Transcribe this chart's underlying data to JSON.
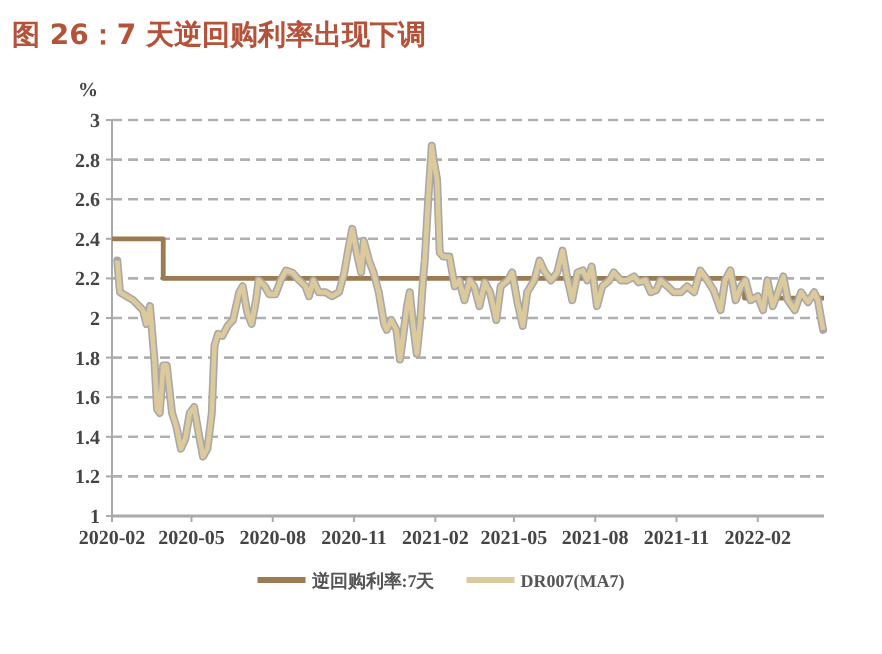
{
  "chart_data": {
    "type": "line",
    "title": "图 26：7 天逆回购利率出现下调",
    "ylabel": "%",
    "xlim": [
      "2020-02-01",
      "2022-04-17"
    ],
    "xticks": [
      {
        "value": "2020-02-01",
        "label": "2020-02"
      },
      {
        "value": "2020-05-01",
        "label": "2020-05"
      },
      {
        "value": "2020-08-01",
        "label": "2020-08"
      },
      {
        "value": "2020-11-01",
        "label": "2020-11"
      },
      {
        "value": "2021-02-01",
        "label": "2021-02"
      },
      {
        "value": "2021-05-01",
        "label": "2021-05"
      },
      {
        "value": "2021-08-01",
        "label": "2021-08"
      },
      {
        "value": "2021-11-01",
        "label": "2021-11"
      },
      {
        "value": "2022-02-01",
        "label": "2022-02"
      }
    ],
    "ylim": [
      1,
      3
    ],
    "yticks": [
      1,
      1.2,
      1.4,
      1.6,
      1.8,
      2,
      2.2,
      2.4,
      2.6,
      2.8,
      3
    ],
    "grid": "y",
    "legend": "bottom",
    "line_style": "solid",
    "marker": "none",
    "series": [
      {
        "name": "逆回购利率:7天",
        "type": "step",
        "color": "#9c7a52",
        "x": [
          "2020-02-01",
          "2020-03-30",
          "2022-01-17",
          "2022-04-17"
        ],
        "values": [
          2.4,
          2.2,
          2.1,
          2.1
        ]
      },
      {
        "name": "DR007(MA7)",
        "type": "line",
        "color": "#dcc99c",
        "x": [
          "2020-02-07",
          "2020-02-10",
          "2020-02-25",
          "2020-03-07",
          "2020-03-11",
          "2020-03-15",
          "2020-03-20",
          "2020-03-23",
          "2020-03-26",
          "2020-03-30",
          "2020-04-03",
          "2020-04-09",
          "2020-04-14",
          "2020-04-19",
          "2020-04-24",
          "2020-04-29",
          "2020-05-04",
          "2020-05-09",
          "2020-05-14",
          "2020-05-19",
          "2020-05-24",
          "2020-05-27",
          "2020-05-31",
          "2020-06-05",
          "2020-06-11",
          "2020-06-17",
          "2020-06-24",
          "2020-06-28",
          "2020-07-03",
          "2020-07-08",
          "2020-07-13",
          "2020-07-16",
          "2020-07-23",
          "2020-07-28",
          "2020-08-04",
          "2020-08-10",
          "2020-08-16",
          "2020-08-23",
          "2020-08-31",
          "2020-09-07",
          "2020-09-11",
          "2020-09-16",
          "2020-09-22",
          "2020-09-30",
          "2020-10-07",
          "2020-10-15",
          "2020-10-21",
          "2020-10-26",
          "2020-10-30",
          "2020-11-04",
          "2020-11-09",
          "2020-11-12",
          "2020-11-18",
          "2020-11-23",
          "2020-11-29",
          "2020-12-05",
          "2020-12-08",
          "2020-12-13",
          "2020-12-19",
          "2020-12-23",
          "2020-12-26",
          "2020-12-31",
          "2021-01-03",
          "2021-01-07",
          "2021-01-11",
          "2021-01-15",
          "2021-01-18",
          "2021-01-20",
          "2021-01-24",
          "2021-01-28",
          "2021-01-30",
          "2021-02-03",
          "2021-02-06",
          "2021-02-10",
          "2021-02-17",
          "2021-02-23",
          "2021-02-28",
          "2021-03-06",
          "2021-03-12",
          "2021-03-17",
          "2021-03-23",
          "2021-03-29",
          "2021-04-04",
          "2021-04-11",
          "2021-04-16",
          "2021-04-24",
          "2021-04-29",
          "2021-05-05",
          "2021-05-11",
          "2021-05-16",
          "2021-05-24",
          "2021-05-30",
          "2021-06-04",
          "2021-06-12",
          "2021-06-19",
          "2021-06-25",
          "2021-06-30",
          "2021-07-06",
          "2021-07-12",
          "2021-07-18",
          "2021-07-23",
          "2021-07-28",
          "2021-08-03",
          "2021-08-09",
          "2021-08-17",
          "2021-08-22",
          "2021-08-30",
          "2021-09-06",
          "2021-09-14",
          "2021-09-19",
          "2021-09-27",
          "2021-10-03",
          "2021-10-09",
          "2021-10-14",
          "2021-10-22",
          "2021-10-29",
          "2021-11-06",
          "2021-11-13",
          "2021-11-21",
          "2021-11-28",
          "2021-12-06",
          "2021-12-13",
          "2021-12-21",
          "2021-12-26",
          "2022-01-01",
          "2022-01-07",
          "2022-01-13",
          "2022-01-18",
          "2022-01-24",
          "2022-02-01",
          "2022-02-07",
          "2022-02-12",
          "2022-02-18",
          "2022-02-24",
          "2022-03-02",
          "2022-03-07",
          "2022-03-15",
          "2022-03-22",
          "2022-03-30",
          "2022-04-06",
          "2022-04-10",
          "2022-04-16"
        ],
        "values": [
          2.29,
          2.13,
          2.09,
          2.04,
          1.97,
          2.06,
          1.79,
          1.54,
          1.52,
          1.76,
          1.76,
          1.52,
          1.45,
          1.34,
          1.39,
          1.52,
          1.55,
          1.42,
          1.3,
          1.34,
          1.52,
          1.86,
          1.92,
          1.91,
          1.96,
          1.99,
          2.13,
          2.16,
          2.03,
          1.97,
          2.09,
          2.19,
          2.16,
          2.12,
          2.12,
          2.19,
          2.24,
          2.23,
          2.19,
          2.16,
          2.11,
          2.19,
          2.13,
          2.13,
          2.11,
          2.13,
          2.23,
          2.36,
          2.45,
          2.33,
          2.23,
          2.39,
          2.29,
          2.23,
          2.13,
          1.97,
          1.94,
          1.99,
          1.94,
          1.79,
          1.89,
          2.06,
          2.13,
          1.96,
          1.82,
          1.99,
          2.19,
          2.29,
          2.6,
          2.87,
          2.8,
          2.7,
          2.33,
          2.31,
          2.31,
          2.16,
          2.19,
          2.09,
          2.19,
          2.16,
          2.06,
          2.18,
          2.13,
          1.99,
          2.16,
          2.19,
          2.23,
          2.08,
          1.96,
          2.13,
          2.19,
          2.29,
          2.24,
          2.19,
          2.23,
          2.34,
          2.21,
          2.09,
          2.23,
          2.24,
          2.19,
          2.26,
          2.06,
          2.16,
          2.19,
          2.23,
          2.19,
          2.19,
          2.21,
          2.18,
          2.19,
          2.13,
          2.14,
          2.19,
          2.16,
          2.13,
          2.13,
          2.16,
          2.13,
          2.24,
          2.19,
          2.14,
          2.04,
          2.19,
          2.24,
          2.09,
          2.16,
          2.19,
          2.09,
          2.11,
          2.04,
          2.19,
          2.06,
          2.13,
          2.21,
          2.09,
          2.04,
          2.13,
          2.08,
          2.13,
          2.09,
          1.94
        ]
      }
    ]
  }
}
